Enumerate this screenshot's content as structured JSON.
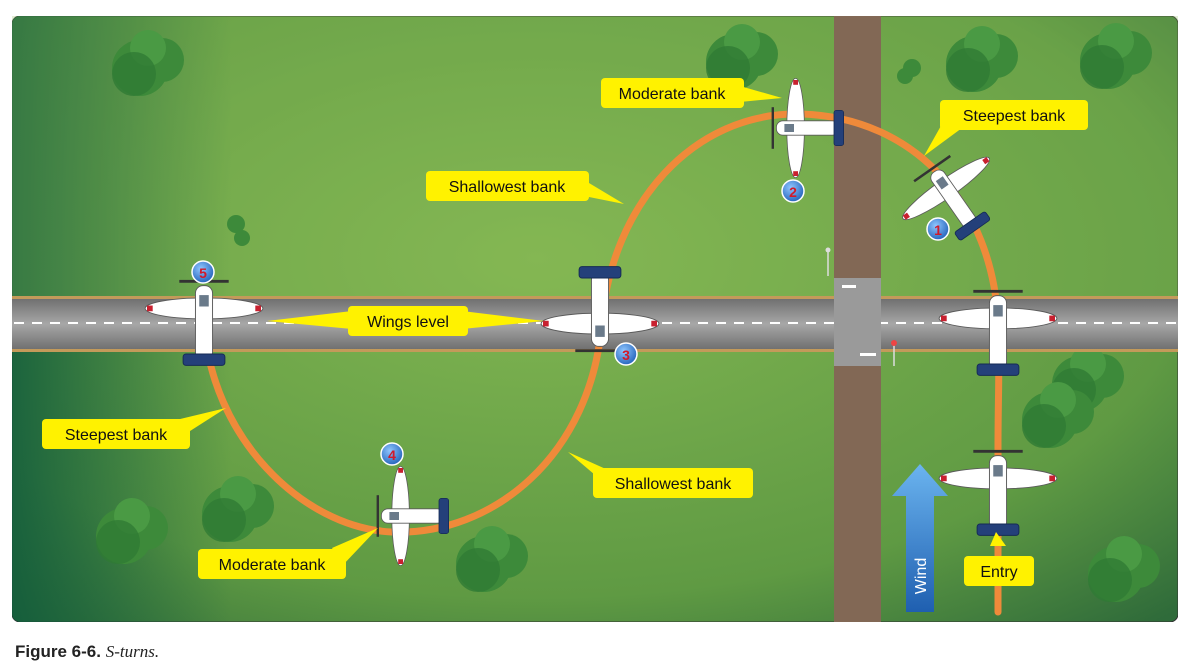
{
  "diagram": {
    "labels": {
      "moderate_bank_top": "Moderate bank",
      "steepest_bank_right": "Steepest bank",
      "shallowest_bank_top": "Shallowest bank",
      "wings_level": "Wings level",
      "steepest_bank_left": "Steepest bank",
      "shallowest_bank_bottom": "Shallowest bank",
      "moderate_bank_bottom": "Moderate bank",
      "entry": "Entry",
      "wind": "Wind"
    },
    "positions": [
      "1",
      "2",
      "3",
      "4",
      "5"
    ],
    "colors": {
      "path": "#ef8a3a",
      "callout": "#fff200",
      "field": "#6ea54a",
      "road": "#8a6e5a",
      "runway": "#8c8c8c",
      "wind_arrow": "#3d8fd6",
      "marker": "#2b6fc2",
      "marker_text": "#d11a2a"
    }
  },
  "caption": {
    "number": "Figure 6-6.",
    "text": "S-turns."
  }
}
